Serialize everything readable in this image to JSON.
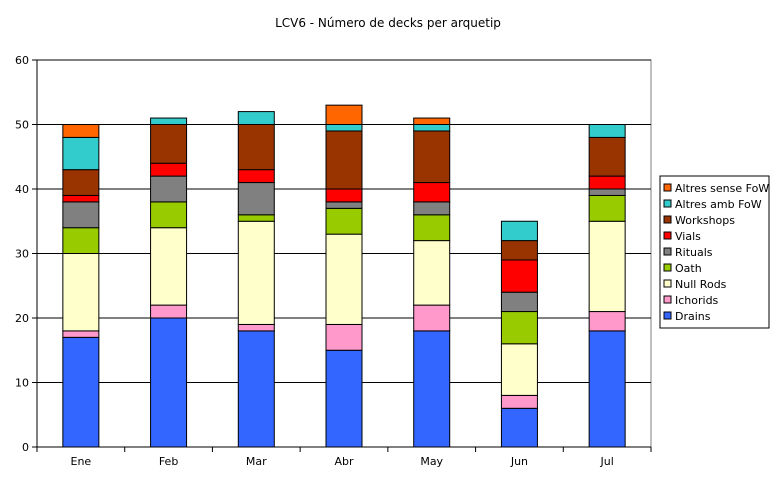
{
  "chart_data": {
    "type": "bar",
    "stacked": true,
    "title": "LCV6 - Número de decks per arquetip",
    "xlabel": "",
    "ylabel": "",
    "categories": [
      "Ene",
      "Feb",
      "Mar",
      "Abr",
      "May",
      "Jun",
      "Jul"
    ],
    "ylim": [
      0,
      60
    ],
    "yticks": [
      0,
      10,
      20,
      30,
      40,
      50,
      60
    ],
    "grid": true,
    "legend_position": "right",
    "series": [
      {
        "name": "Drains",
        "color": "#3366ff",
        "values": [
          17,
          20,
          18,
          15,
          18,
          6,
          18
        ]
      },
      {
        "name": "Ichorids",
        "color": "#ff99cc",
        "values": [
          1,
          2,
          1,
          4,
          4,
          2,
          3
        ]
      },
      {
        "name": "Null Rods",
        "color": "#ffffcc",
        "values": [
          12,
          12,
          16,
          14,
          10,
          8,
          14
        ]
      },
      {
        "name": "Oath",
        "color": "#99cc00",
        "values": [
          4,
          4,
          1,
          4,
          4,
          5,
          4
        ]
      },
      {
        "name": "Rituals",
        "color": "#808080",
        "values": [
          4,
          4,
          5,
          1,
          2,
          3,
          1
        ]
      },
      {
        "name": "Vials",
        "color": "#ff0000",
        "values": [
          1,
          2,
          2,
          2,
          3,
          5,
          2
        ]
      },
      {
        "name": "Workshops",
        "color": "#993300",
        "values": [
          4,
          6,
          7,
          9,
          8,
          3,
          6
        ]
      },
      {
        "name": "Altres amb FoW",
        "color": "#33cccc",
        "values": [
          5,
          1,
          2,
          1,
          1,
          3,
          2
        ]
      },
      {
        "name": "Altres sense FoW",
        "color": "#ff6600",
        "values": [
          2,
          0,
          0,
          3,
          1,
          0,
          0
        ]
      }
    ]
  }
}
